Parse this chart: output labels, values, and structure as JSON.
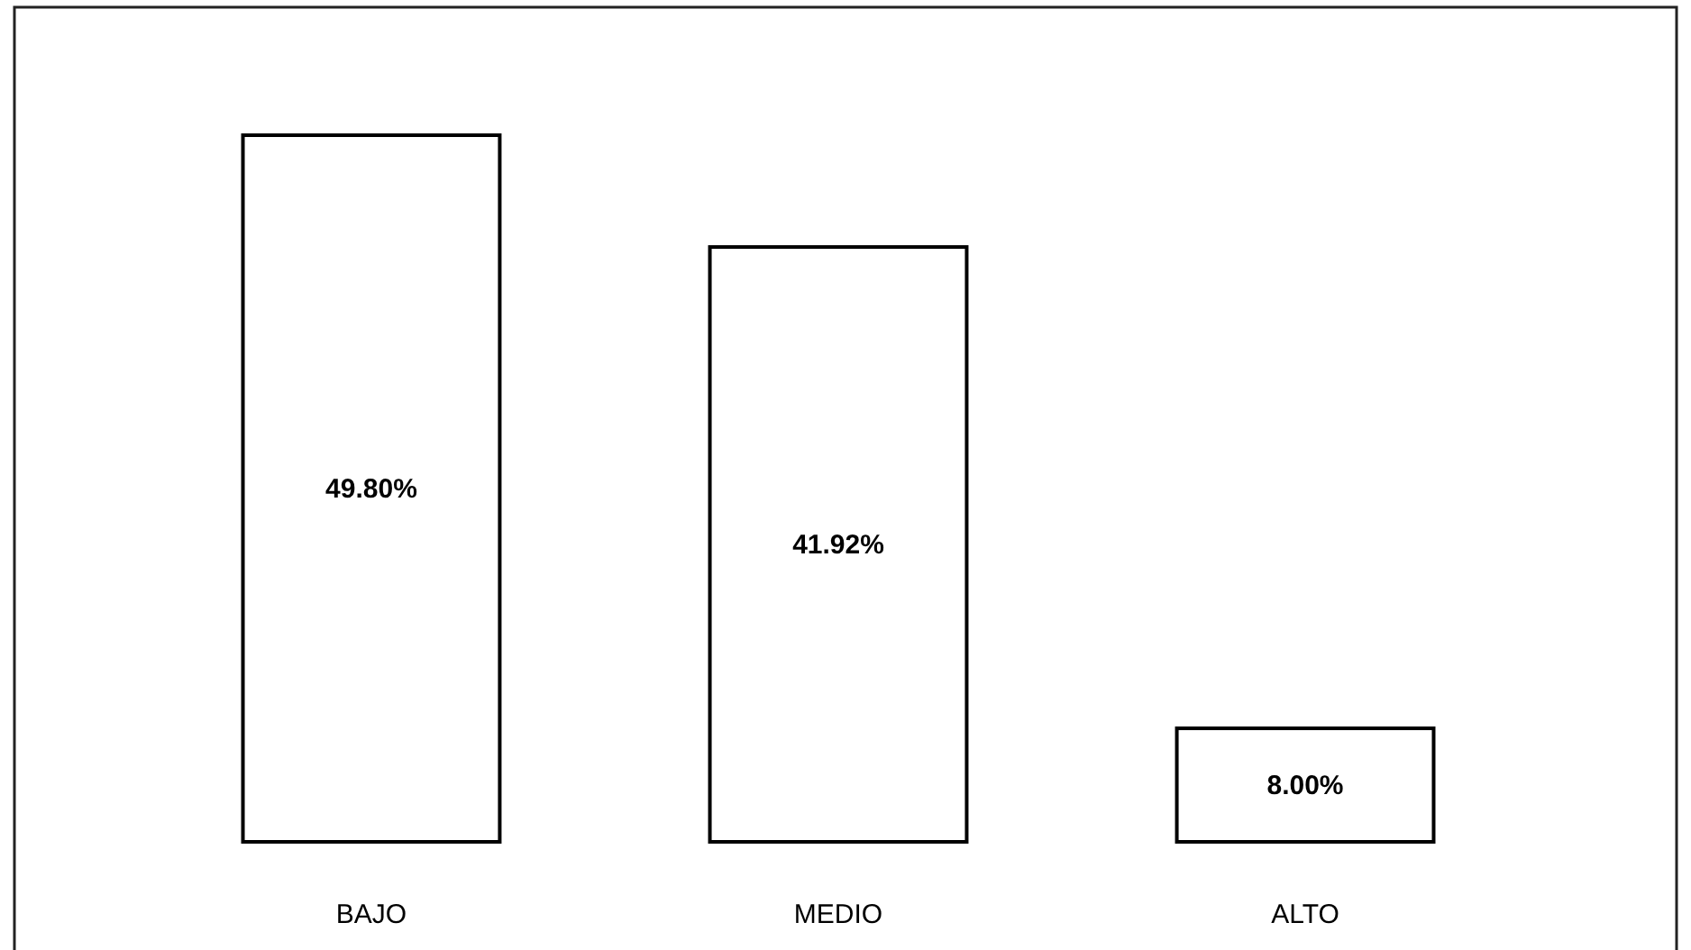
{
  "chart_data": {
    "type": "bar",
    "categories": [
      "BAJO",
      "MEDIO",
      "ALTO"
    ],
    "values": [
      49.8,
      41.92,
      8.0
    ],
    "color": "#ffffff",
    "value_labels": [
      "49.80%",
      "41.92%",
      "8.00%"
    ]
  }
}
